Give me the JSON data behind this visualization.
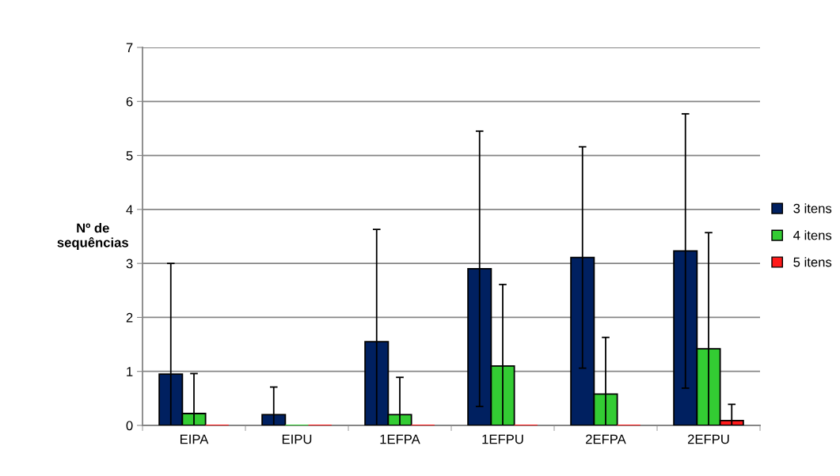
{
  "chart_data": {
    "type": "bar",
    "ylabel": "Nº de\nsequências",
    "categories": [
      "EIPA",
      "EIPU",
      "1EFPA",
      "1EFPU",
      "2EFPA",
      "2EFPU"
    ],
    "series": [
      {
        "name": "3 itens",
        "color": "#002060",
        "values": [
          0.95,
          0.2,
          1.55,
          2.9,
          3.11,
          3.23
        ],
        "errors": [
          [
            0,
            3.0
          ],
          [
            0,
            0.71
          ],
          [
            0,
            3.63
          ],
          [
            0.35,
            5.45
          ],
          [
            1.06,
            5.16
          ],
          [
            0.69,
            5.77
          ]
        ]
      },
      {
        "name": "4 itens",
        "color": "#33cc33",
        "values": [
          0.22,
          0,
          0.2,
          1.1,
          0.58,
          1.42
        ],
        "errors": [
          [
            0,
            0.96
          ],
          null,
          [
            0,
            0.89
          ],
          [
            0,
            2.61
          ],
          [
            0,
            1.63
          ],
          [
            0,
            3.57
          ]
        ]
      },
      {
        "name": "5 itens",
        "color": "#ff1a1a",
        "values": [
          0,
          0,
          0,
          0,
          0,
          0.09
        ],
        "errors": [
          null,
          null,
          null,
          null,
          null,
          [
            0,
            0.39
          ]
        ]
      }
    ],
    "ylim": [
      0,
      7
    ],
    "yticks": [
      0,
      1,
      2,
      3,
      4,
      5,
      6,
      7
    ],
    "grid": "y",
    "legend": "right"
  }
}
